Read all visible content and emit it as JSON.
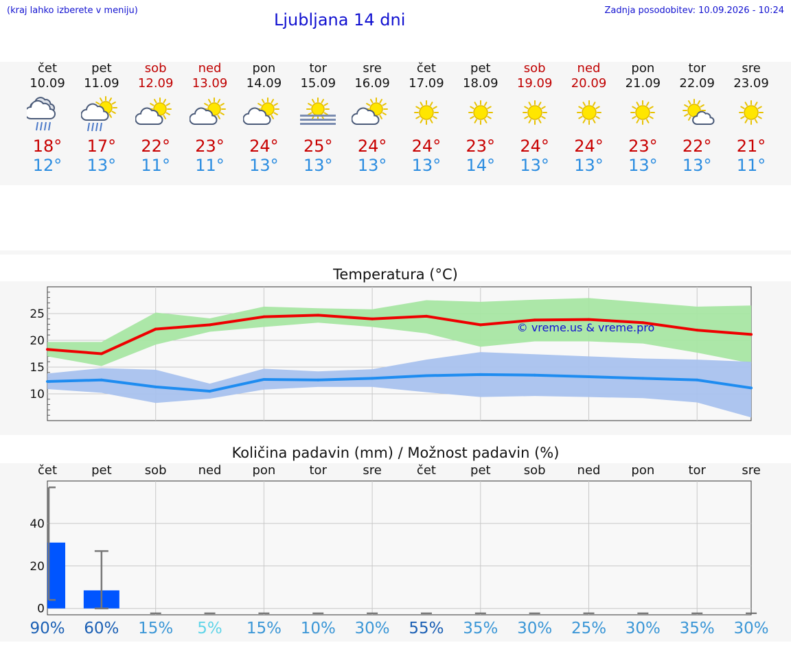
{
  "header": {
    "note": "(kraj lahko izberete v meniju)",
    "title": "Ljubljana 14 dni",
    "updated": "Zadnja posodobitev: 10.09.2026 - 10:24"
  },
  "days": [
    {
      "name": "čet",
      "date": "10.09",
      "weekend": false,
      "icon": "cloud-heavy-rain-icon",
      "tmax": "18°",
      "tmin": "12°"
    },
    {
      "name": "pet",
      "date": "11.09",
      "weekend": false,
      "icon": "sun-cloud-rain-icon",
      "tmax": "17°",
      "tmin": "13°"
    },
    {
      "name": "sob",
      "date": "12.09",
      "weekend": true,
      "icon": "sun-cloud-icon",
      "tmax": "22°",
      "tmin": "11°"
    },
    {
      "name": "ned",
      "date": "13.09",
      "weekend": true,
      "icon": "sun-cloud-icon",
      "tmax": "23°",
      "tmin": "11°"
    },
    {
      "name": "pon",
      "date": "14.09",
      "weekend": false,
      "icon": "sun-cloud-icon",
      "tmax": "24°",
      "tmin": "13°"
    },
    {
      "name": "tor",
      "date": "15.09",
      "weekend": false,
      "icon": "sun-fog-icon",
      "tmax": "25°",
      "tmin": "13°"
    },
    {
      "name": "sre",
      "date": "16.09",
      "weekend": false,
      "icon": "sun-cloud-icon",
      "tmax": "24°",
      "tmin": "13°"
    },
    {
      "name": "čet",
      "date": "17.09",
      "weekend": false,
      "icon": "sun-icon",
      "tmax": "24°",
      "tmin": "13°"
    },
    {
      "name": "pet",
      "date": "18.09",
      "weekend": false,
      "icon": "sun-icon",
      "tmax": "23°",
      "tmin": "14°"
    },
    {
      "name": "sob",
      "date": "19.09",
      "weekend": true,
      "icon": "sun-icon",
      "tmax": "24°",
      "tmin": "13°"
    },
    {
      "name": "ned",
      "date": "20.09",
      "weekend": true,
      "icon": "sun-icon",
      "tmax": "24°",
      "tmin": "13°"
    },
    {
      "name": "pon",
      "date": "21.09",
      "weekend": false,
      "icon": "sun-icon",
      "tmax": "23°",
      "tmin": "13°"
    },
    {
      "name": "tor",
      "date": "22.09",
      "weekend": false,
      "icon": "sun-small-cloud-icon",
      "tmax": "22°",
      "tmin": "13°"
    },
    {
      "name": "sre",
      "date": "23.09",
      "weekend": false,
      "icon": "sun-icon",
      "tmax": "21°",
      "tmin": "11°"
    }
  ],
  "colors": {
    "max_line": "#ee0000",
    "max_band": "#a8e6a3",
    "min_line": "#1e8cf0",
    "min_band": "#a9c2ee",
    "precip_bar": "#0055ff",
    "text_blue": "#1010d0"
  },
  "chart_data": [
    {
      "type": "line",
      "title": "Temperatura (°C)",
      "watermark": "© vreme.us & vreme.pro",
      "x": [
        "10.09",
        "11.09",
        "12.09",
        "13.09",
        "14.09",
        "15.09",
        "16.09",
        "17.09",
        "18.09",
        "19.09",
        "20.09",
        "21.09",
        "22.09",
        "23.09"
      ],
      "ylim": [
        5,
        30
      ],
      "yticks": [
        10,
        15,
        20,
        25
      ],
      "grid": true,
      "series": [
        {
          "values": [
            18.3,
            17.5,
            22.1,
            22.9,
            24.4,
            24.7,
            24.0,
            24.5,
            22.9,
            23.8,
            23.9,
            23.3,
            21.9,
            21.1
          ],
          "band_low": [
            17.0,
            15.2,
            19.2,
            21.6,
            22.5,
            23.3,
            22.5,
            21.3,
            18.8,
            19.8,
            19.8,
            19.4,
            17.7,
            15.7
          ],
          "band_high": [
            19.7,
            19.7,
            25.2,
            24.1,
            26.3,
            26.0,
            25.8,
            27.5,
            27.2,
            27.6,
            27.9,
            27.1,
            26.3,
            26.5
          ]
        },
        {
          "values": [
            12.3,
            12.6,
            11.3,
            10.5,
            12.7,
            12.6,
            12.9,
            13.4,
            13.6,
            13.5,
            13.2,
            12.9,
            12.6,
            11.1
          ],
          "band_low": [
            10.9,
            10.2,
            8.3,
            9.1,
            10.8,
            11.3,
            11.3,
            10.3,
            9.4,
            9.6,
            9.4,
            9.2,
            8.4,
            5.6
          ],
          "band_high": [
            13.8,
            14.8,
            14.5,
            11.9,
            14.7,
            14.2,
            14.6,
            16.4,
            17.8,
            17.4,
            17.0,
            16.6,
            16.4,
            16.0
          ]
        }
      ]
    },
    {
      "type": "bar",
      "title": "Količina padavin (mm) / Možnost padavin (%)",
      "categories": [
        "čet",
        "pet",
        "sob",
        "ned",
        "pon",
        "tor",
        "sre",
        "čet",
        "pet",
        "sob",
        "ned",
        "pon",
        "tor",
        "sre"
      ],
      "values": [
        31,
        8.5,
        0,
        0,
        0,
        0,
        0,
        0,
        0,
        0,
        0,
        0,
        0,
        0
      ],
      "error_low": [
        4,
        0,
        0,
        0,
        0,
        0,
        0,
        0,
        0,
        0,
        0,
        0,
        0,
        0
      ],
      "error_high": [
        57,
        27,
        0,
        0,
        0,
        0,
        0,
        0,
        0,
        0,
        0,
        0,
        0,
        0
      ],
      "ylim": [
        -3,
        60
      ],
      "yticks": [
        0,
        20,
        40
      ],
      "grid": true,
      "chance": [
        "90%",
        "60%",
        "15%",
        "5%",
        "15%",
        "10%",
        "30%",
        "55%",
        "35%",
        "30%",
        "25%",
        "30%",
        "35%",
        "30%"
      ],
      "chance_colors": [
        "#1a5fb4",
        "#1a5fb4",
        "#3a96d6",
        "#5fd4e8",
        "#3a96d6",
        "#3a96d6",
        "#3a96d6",
        "#1a5fb4",
        "#3a96d6",
        "#3a96d6",
        "#3a96d6",
        "#3a96d6",
        "#3a96d6",
        "#3a96d6"
      ]
    }
  ]
}
